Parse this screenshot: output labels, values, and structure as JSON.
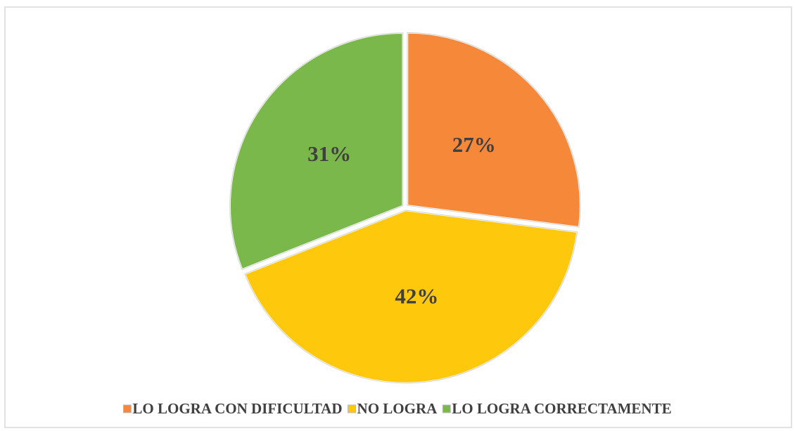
{
  "chart_data": {
    "type": "pie",
    "categories": [
      "LO LOGRA CON DIFICULTAD",
      "NO LOGRA",
      "LO LOGRA CORRECTAMENTE"
    ],
    "values": [
      27,
      42,
      31
    ],
    "value_labels": [
      "27%",
      "42%",
      "31%"
    ],
    "colors": [
      "#f6883a",
      "#fec80c",
      "#7bb84b"
    ],
    "legend": "bottom"
  }
}
